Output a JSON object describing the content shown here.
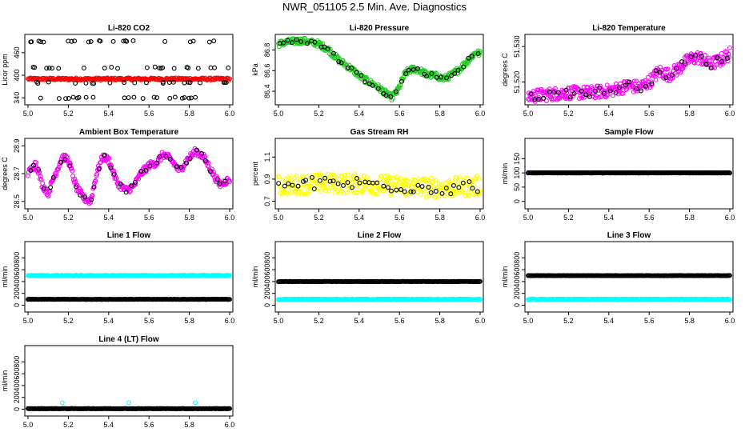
{
  "title": "NWR_051105  2.5 Min. Ave. Diagnostics",
  "colors": {
    "black": "#000000",
    "red": "#ff0000",
    "green": "#22cc22",
    "magenta": "#ff00ff",
    "yellow": "#ffff00",
    "blue": "#0000cc",
    "cyan": "#00ffff"
  },
  "chart_data": [
    {
      "type": "scatter",
      "title": "Li-820 CO2",
      "ylabel": "Licor ppm",
      "xlim": [
        5.0,
        6.0
      ],
      "ylim": [
        330,
        500
      ],
      "xticks": [
        "5.0",
        "5.2",
        "5.4",
        "5.6",
        "5.8",
        "6.0"
      ],
      "yticks": [
        "340",
        "400",
        "460"
      ],
      "series": [
        {
          "kind": "band",
          "color": "red",
          "y": 390,
          "spread": 3
        },
        {
          "kind": "levels",
          "color": "black",
          "levels": [
            340,
            380,
            420,
            490
          ],
          "count": 22
        }
      ]
    },
    {
      "type": "scatter",
      "title": "Li-820 Pressure",
      "ylabel": "kPa",
      "xlim": [
        5.0,
        6.0
      ],
      "ylim": [
        86.3,
        86.92
      ],
      "xticks": [
        "5.0",
        "5.2",
        "5.4",
        "5.6",
        "5.8",
        "6.0"
      ],
      "yticks": [
        "86.4",
        "86.6",
        "86.8"
      ],
      "series": [
        {
          "kind": "curve",
          "color": "green",
          "spread": 0.03,
          "points": [
            [
              5.0,
              86.86
            ],
            [
              5.06,
              86.88
            ],
            [
              5.12,
              86.89
            ],
            [
              5.2,
              86.86
            ],
            [
              5.25,
              86.8
            ],
            [
              5.3,
              86.7
            ],
            [
              5.36,
              86.62
            ],
            [
              5.42,
              86.52
            ],
            [
              5.48,
              86.46
            ],
            [
              5.52,
              86.4
            ],
            [
              5.56,
              86.34
            ],
            [
              5.59,
              86.4
            ],
            [
              5.63,
              86.58
            ],
            [
              5.67,
              86.62
            ],
            [
              5.7,
              86.6
            ],
            [
              5.74,
              86.56
            ],
            [
              5.78,
              86.55
            ],
            [
              5.82,
              86.52
            ],
            [
              5.86,
              86.56
            ],
            [
              5.9,
              86.62
            ],
            [
              5.94,
              86.7
            ],
            [
              5.98,
              86.78
            ],
            [
              6.0,
              86.76
            ]
          ]
        },
        {
          "kind": "dots_on_curve",
          "color": "black",
          "count": 45
        }
      ]
    },
    {
      "type": "scatter",
      "title": "Li-820 Temperature",
      "ylabel": "degrees C",
      "xlim": [
        5.0,
        6.0
      ],
      "ylim": [
        51.5145,
        51.5325
      ],
      "xticks": [
        "5.0",
        "5.2",
        "5.4",
        "5.6",
        "5.8",
        "6.0"
      ],
      "yticks": [
        "51.520",
        "51.530"
      ],
      "series": [
        {
          "kind": "curve",
          "color": "magenta",
          "spread": 0.0018,
          "points": [
            [
              5.0,
              51.516
            ],
            [
              5.1,
              51.5165
            ],
            [
              5.2,
              51.517
            ],
            [
              5.3,
              51.517
            ],
            [
              5.4,
              51.5175
            ],
            [
              5.5,
              51.519
            ],
            [
              5.55,
              51.5185
            ],
            [
              5.6,
              51.52
            ],
            [
              5.65,
              51.523
            ],
            [
              5.7,
              51.522
            ],
            [
              5.75,
              51.524
            ],
            [
              5.8,
              51.5265
            ],
            [
              5.85,
              51.527
            ],
            [
              5.9,
              51.525
            ],
            [
              5.95,
              51.526
            ],
            [
              6.0,
              51.528
            ]
          ]
        },
        {
          "kind": "dots_on_curve",
          "color": "black",
          "count": 40
        }
      ]
    },
    {
      "type": "scatter",
      "title": "Ambient Box Temperature",
      "ylabel": "degrees C",
      "xlim": [
        5.0,
        6.0
      ],
      "ylim": [
        28.47,
        28.93
      ],
      "xticks": [
        "5.0",
        "5.2",
        "5.4",
        "5.6",
        "5.8",
        "6.0"
      ],
      "yticks": [
        "28.5",
        "28.7",
        "28.9"
      ],
      "series": [
        {
          "kind": "curve",
          "color": "magenta",
          "spread": 0.025,
          "points": [
            [
              5.0,
              28.7
            ],
            [
              5.04,
              28.78
            ],
            [
              5.07,
              28.62
            ],
            [
              5.1,
              28.56
            ],
            [
              5.13,
              28.68
            ],
            [
              5.17,
              28.82
            ],
            [
              5.2,
              28.8
            ],
            [
              5.24,
              28.6
            ],
            [
              5.28,
              28.52
            ],
            [
              5.31,
              28.5
            ],
            [
              5.34,
              28.7
            ],
            [
              5.37,
              28.82
            ],
            [
              5.4,
              28.8
            ],
            [
              5.44,
              28.64
            ],
            [
              5.48,
              28.58
            ],
            [
              5.52,
              28.6
            ],
            [
              5.56,
              28.7
            ],
            [
              5.6,
              28.76
            ],
            [
              5.64,
              28.78
            ],
            [
              5.67,
              28.84
            ],
            [
              5.71,
              28.8
            ],
            [
              5.75,
              28.72
            ],
            [
              5.79,
              28.8
            ],
            [
              5.83,
              28.86
            ],
            [
              5.87,
              28.82
            ],
            [
              5.91,
              28.72
            ],
            [
              5.95,
              28.62
            ],
            [
              6.0,
              28.66
            ]
          ]
        },
        {
          "kind": "dots_on_curve",
          "color": "black",
          "count": 40
        }
      ]
    },
    {
      "type": "scatter",
      "title": "Gas Stream RH",
      "ylabel": "percent",
      "xlim": [
        5.0,
        6.0
      ],
      "ylim": [
        0.66,
        1.24
      ],
      "xticks": [
        "5.0",
        "5.2",
        "5.4",
        "5.6",
        "5.8",
        "6.0"
      ],
      "yticks": [
        "0.7",
        "0.9",
        "1.1"
      ],
      "series": [
        {
          "kind": "curve",
          "color": "yellow",
          "spread": 0.09,
          "points": [
            [
              5.0,
              0.84
            ],
            [
              5.2,
              0.86
            ],
            [
              5.4,
              0.86
            ],
            [
              5.6,
              0.84
            ],
            [
              5.8,
              0.82
            ],
            [
              6.0,
              0.84
            ]
          ]
        },
        {
          "kind": "dots_on_curve",
          "color": "black",
          "count": 45
        }
      ]
    },
    {
      "type": "scatter",
      "title": "Sample Flow",
      "ylabel": "ml/min",
      "xlim": [
        5.0,
        6.0
      ],
      "ylim": [
        -15,
        210
      ],
      "xticks": [
        "5.0",
        "5.2",
        "5.4",
        "5.6",
        "5.8",
        "6.0"
      ],
      "yticks": [
        "0",
        "50",
        "100",
        "150"
      ],
      "series": [
        {
          "kind": "band",
          "color": "blue",
          "y": 100,
          "spread": 0.5
        },
        {
          "kind": "band",
          "color": "black",
          "y": 100,
          "spread": 0.5
        }
      ]
    },
    {
      "type": "scatter",
      "title": "Line 1 Flow",
      "ylabel": "ml/min",
      "xlim": [
        5.0,
        6.0
      ],
      "ylim": [
        -60,
        1020
      ],
      "xticks": [
        "5.0",
        "5.2",
        "5.4",
        "5.6",
        "5.8",
        "6.0"
      ],
      "yticks": [
        "0",
        "200",
        "400",
        "600",
        "800"
      ],
      "series": [
        {
          "kind": "band",
          "color": "cyan",
          "y": 500,
          "spread": 6
        },
        {
          "kind": "band",
          "color": "black",
          "y": 100,
          "spread": 3
        }
      ]
    },
    {
      "type": "scatter",
      "title": "Line 2 Flow",
      "ylabel": "ml/min",
      "xlim": [
        5.0,
        6.0
      ],
      "ylim": [
        -60,
        1020
      ],
      "xticks": [
        "5.0",
        "5.2",
        "5.4",
        "5.6",
        "5.8",
        "6.0"
      ],
      "yticks": [
        "0",
        "200",
        "400",
        "600",
        "800"
      ],
      "series": [
        {
          "kind": "band",
          "color": "cyan",
          "y": 100,
          "spread": 6
        },
        {
          "kind": "band",
          "color": "black",
          "y": 400,
          "spread": 3
        }
      ]
    },
    {
      "type": "scatter",
      "title": "Line 3 Flow",
      "ylabel": "ml/min",
      "xlim": [
        5.0,
        6.0
      ],
      "ylim": [
        -60,
        1020
      ],
      "xticks": [
        "5.0",
        "5.2",
        "5.4",
        "5.6",
        "5.8",
        "6.0"
      ],
      "yticks": [
        "0",
        "200",
        "400",
        "600",
        "800"
      ],
      "series": [
        {
          "kind": "band",
          "color": "cyan",
          "y": 100,
          "spread": 6
        },
        {
          "kind": "band",
          "color": "black",
          "y": 500,
          "spread": 3
        }
      ]
    },
    {
      "type": "scatter",
      "title": "Line 4 (LT) Flow",
      "ylabel": "ml/min",
      "xlim": [
        5.0,
        6.0
      ],
      "ylim": [
        -60,
        1020
      ],
      "xticks": [
        "5.0",
        "5.2",
        "5.4",
        "5.6",
        "5.8",
        "6.0"
      ],
      "yticks": [
        "0",
        "200",
        "400",
        "600",
        "800"
      ],
      "series": [
        {
          "kind": "band",
          "color": "cyan",
          "y": 10,
          "spread": 4
        },
        {
          "kind": "band",
          "color": "black",
          "y": 10,
          "spread": 3
        },
        {
          "kind": "points",
          "color": "cyan",
          "points": [
            [
              5.17,
              110
            ],
            [
              5.5,
              110
            ],
            [
              5.83,
              110
            ]
          ]
        }
      ]
    }
  ]
}
